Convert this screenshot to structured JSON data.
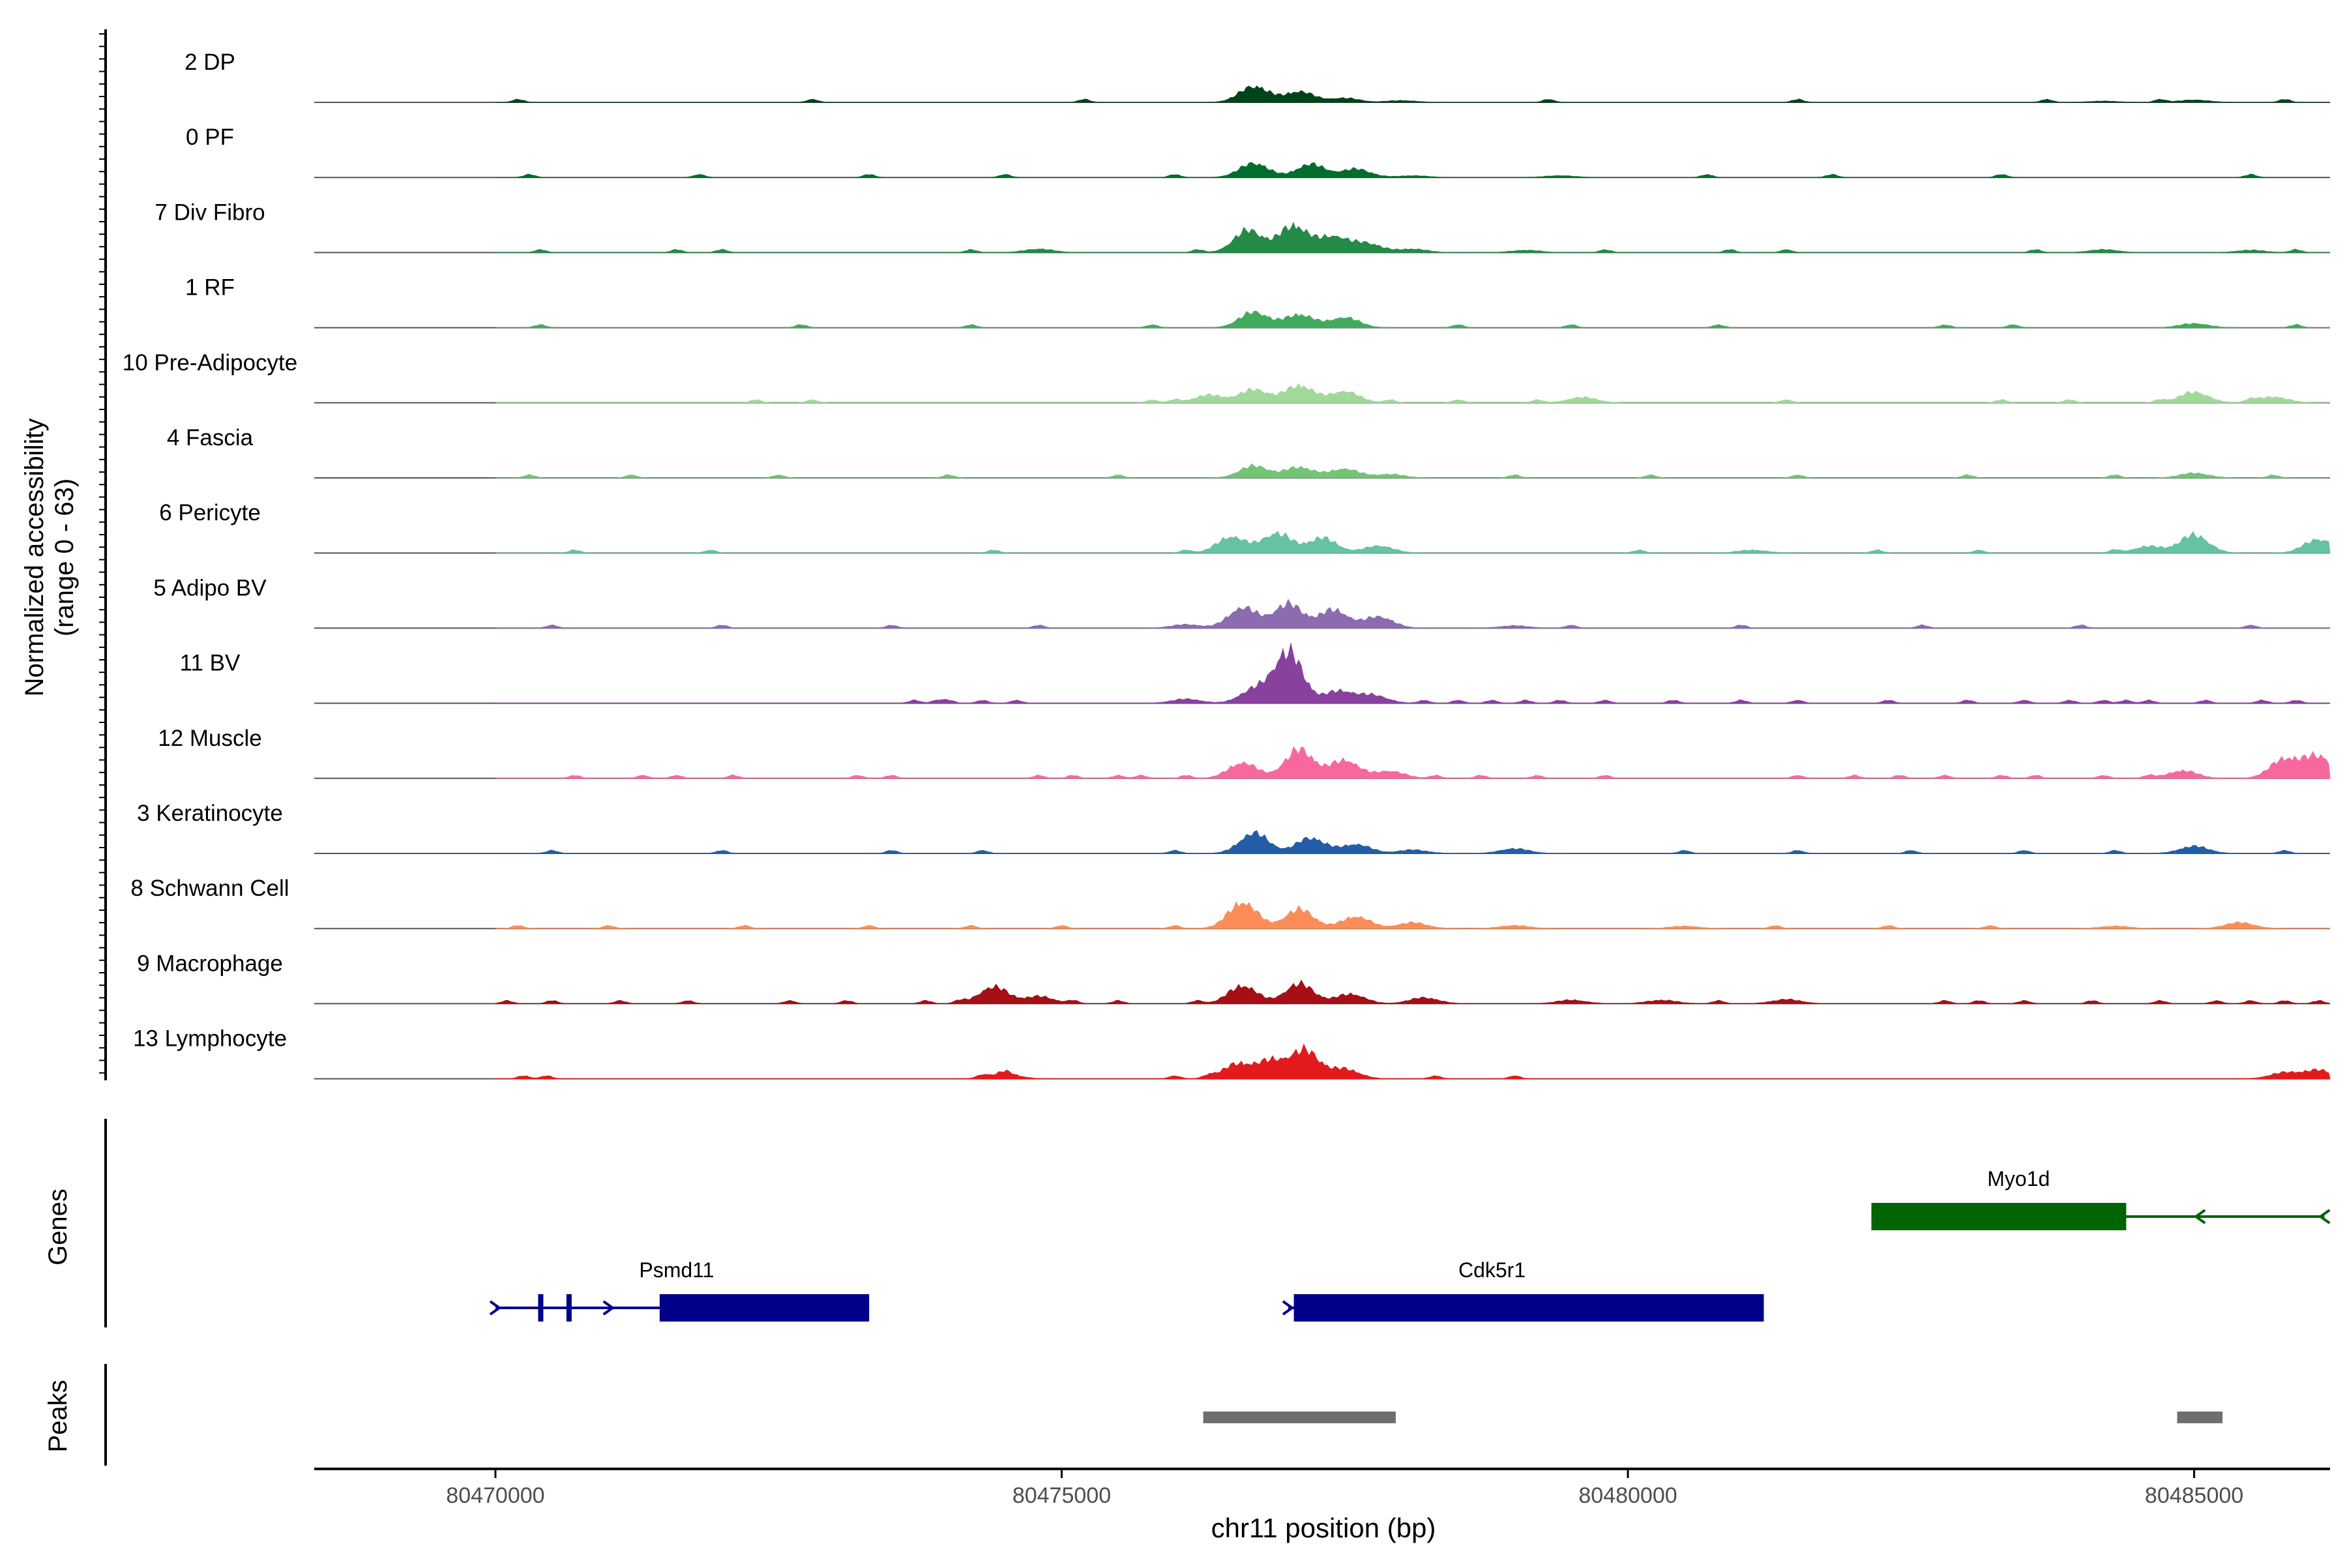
{
  "chart_data": {
    "type": "area",
    "title": "",
    "ylabel_line1": "Normalized accessibility",
    "ylabel_line2": "(range 0 - 63)",
    "xlabel": "chr11 position (bp)",
    "xlim": [
      80468400,
      80486200
    ],
    "ylim": [
      0,
      63
    ],
    "x_ticks": [
      80470000,
      80475000,
      80480000,
      80485000
    ],
    "x_tick_labels": [
      "80470000",
      "80475000",
      "80480000",
      "80485000"
    ],
    "genes_label": "Genes",
    "peaks_label": "Peaks",
    "tracks": [
      {
        "name": "2 DP",
        "color": "#00441b",
        "peaks": [
          [
            80476700,
            27
          ],
          [
            80477100,
            18
          ],
          [
            80477500,
            7
          ],
          [
            80478000,
            3
          ],
          [
            80485000,
            4
          ],
          [
            80484200,
            2
          ]
        ],
        "dots": [
          80470200,
          80472800,
          80475200,
          80479300,
          80481500,
          80483700,
          80484700,
          80485800
        ]
      },
      {
        "name": "0 PF",
        "color": "#006d2c",
        "peaks": [
          [
            80476700,
            24
          ],
          [
            80477200,
            22
          ],
          [
            80477600,
            14
          ],
          [
            80478100,
            3
          ],
          [
            80479400,
            3
          ]
        ],
        "dots": [
          80470300,
          80471800,
          80473300,
          80474500,
          80476000,
          80480700,
          80481800,
          80483300,
          80485500
        ]
      },
      {
        "name": "7 Div Fibro",
        "color": "#238b45",
        "peaks": [
          [
            80476650,
            37
          ],
          [
            80477050,
            45
          ],
          [
            80477400,
            26
          ],
          [
            80477700,
            15
          ],
          [
            80478100,
            6
          ],
          [
            80474800,
            6
          ],
          [
            80479100,
            4
          ],
          [
            80484200,
            5
          ],
          [
            80485500,
            4
          ]
        ],
        "dots": [
          80470400,
          80471600,
          80472000,
          80474200,
          80476200,
          80479800,
          80480900,
          80481400,
          80483600,
          80485900
        ]
      },
      {
        "name": "1 RF",
        "color": "#41ab5d",
        "peaks": [
          [
            80476700,
            26
          ],
          [
            80477100,
            22
          ],
          [
            80477500,
            17
          ],
          [
            80485000,
            7
          ]
        ],
        "dots": [
          80470400,
          80472700,
          80474200,
          80475800,
          80478500,
          80479500,
          80480800,
          80482800,
          80483400,
          80485900
        ]
      },
      {
        "name": "10 Pre-Adipocyte",
        "color": "#a1d99b",
        "peaks": [
          [
            80476700,
            22
          ],
          [
            80477100,
            29
          ],
          [
            80477500,
            19
          ],
          [
            80476300,
            13
          ],
          [
            80485000,
            18
          ],
          [
            80479600,
            9
          ],
          [
            80485700,
            10
          ]
        ],
        "dots": [
          80472300,
          80472800,
          80475800,
          80476000,
          80477900,
          80478500,
          80479200,
          80481400,
          80483300,
          80483900,
          80484700,
          80485500
        ]
      },
      {
        "name": "4 Fascia",
        "color": "#74c476",
        "peaks": [
          [
            80476700,
            20
          ],
          [
            80477100,
            18
          ],
          [
            80477500,
            15
          ],
          [
            80477900,
            6
          ],
          [
            80485000,
            8
          ]
        ],
        "dots": [
          80470300,
          80471200,
          80472500,
          80474000,
          80475500,
          80479000,
          80480200,
          80481500,
          80483000,
          80484300,
          80485700
        ]
      },
      {
        "name": "6 Pericyte",
        "color": "#66c2a4",
        "peaks": [
          [
            80476500,
            27
          ],
          [
            80476900,
            33
          ],
          [
            80477300,
            25
          ],
          [
            80477800,
            12
          ],
          [
            80481100,
            5
          ],
          [
            80484600,
            11
          ],
          [
            80485000,
            30
          ],
          [
            80486100,
            23
          ]
        ],
        "dots": [
          80470700,
          80471900,
          80474400,
          80476100,
          80480100,
          80482200,
          80483100,
          80484300
        ]
      },
      {
        "name": "5 Adipo BV",
        "color": "#8c6bb1",
        "peaks": [
          [
            80476600,
            34
          ],
          [
            80477000,
            40
          ],
          [
            80477400,
            30
          ],
          [
            80477800,
            19
          ],
          [
            80476100,
            6
          ],
          [
            80479000,
            4
          ]
        ],
        "dots": [
          80470500,
          80472000,
          80473500,
          80474800,
          80479500,
          80481000,
          80482600,
          80484000,
          80485500
        ]
      },
      {
        "name": "11 BV",
        "color": "#88419d",
        "peaks": [
          [
            80476700,
            22
          ],
          [
            80477000,
            85
          ],
          [
            80477450,
            20
          ],
          [
            80477750,
            13
          ],
          [
            80476100,
            7
          ]
        ],
        "dots": [
          80473700,
          80473900,
          80474000,
          80474300,
          80474600,
          80478200,
          80478500,
          80478800,
          80479100,
          80479400,
          80479800,
          80480400,
          80481000,
          80481500,
          80482300,
          80483000,
          80483500,
          80483900,
          80484200,
          80484400,
          80484600,
          80485100,
          80485600,
          80485900
        ]
      },
      {
        "name": "12 Muscle",
        "color": "#f768a1",
        "peaks": [
          [
            80476600,
            26
          ],
          [
            80477100,
            48
          ],
          [
            80477500,
            30
          ],
          [
            80477900,
            12
          ],
          [
            80484900,
            13
          ],
          [
            80485800,
            32
          ],
          [
            80486100,
            36
          ]
        ],
        "dots": [
          80470700,
          80471300,
          80471600,
          80472100,
          80473200,
          80473500,
          80474800,
          80475100,
          80475500,
          80475700,
          80476100,
          80478300,
          80478700,
          80479200,
          80479800,
          80481500,
          80482000,
          80482400,
          80482800,
          80483300,
          80483600,
          80484200,
          80484600
        ]
      },
      {
        "name": "3 Keratinocyte",
        "color": "#225ea8",
        "peaks": [
          [
            80476700,
            34
          ],
          [
            80477200,
            26
          ],
          [
            80477600,
            15
          ],
          [
            80478100,
            6
          ],
          [
            80479000,
            8
          ],
          [
            80485000,
            12
          ]
        ],
        "dots": [
          80470500,
          80472000,
          80473500,
          80474300,
          80476000,
          80480500,
          80481500,
          80482500,
          80483500,
          80484300,
          80485800
        ]
      },
      {
        "name": "8 Schwann Cell",
        "color": "#fc8d59",
        "peaks": [
          [
            80476600,
            44
          ],
          [
            80477100,
            32
          ],
          [
            80477600,
            20
          ],
          [
            80478100,
            10
          ],
          [
            80479000,
            5
          ],
          [
            80480500,
            4
          ],
          [
            80484300,
            4
          ],
          [
            80485400,
            10
          ]
        ],
        "dots": [
          80470200,
          80471000,
          80472200,
          80473300,
          80474200,
          80475000,
          80476000,
          80481300,
          80482300,
          80483200
        ]
      },
      {
        "name": "9 Macrophage",
        "color": "#a50f15",
        "peaks": [
          [
            80474400,
            28
          ],
          [
            80474800,
            12
          ],
          [
            80476600,
            30
          ],
          [
            80477100,
            33
          ],
          [
            80477550,
            16
          ],
          [
            80478200,
            10
          ],
          [
            80479500,
            6
          ],
          [
            80480300,
            6
          ],
          [
            80481400,
            7
          ]
        ],
        "dots": [
          80470100,
          80470500,
          80471100,
          80471700,
          80472600,
          80473100,
          80473800,
          80474100,
          80475100,
          80475500,
          80476200,
          80480800,
          80482800,
          80483100,
          80483500,
          80484100,
          80484700,
          80485200,
          80485500,
          80485800,
          80486100
        ]
      },
      {
        "name": "13 Lymphocyte",
        "color": "#e31a1c",
        "peaks": [
          [
            80476550,
            24
          ],
          [
            80476850,
            28
          ],
          [
            80477150,
            46
          ],
          [
            80477500,
            16
          ],
          [
            80474500,
            8
          ],
          [
            80485800,
            10
          ],
          [
            80486100,
            14
          ]
        ],
        "dots": [
          80470250,
          80470450,
          80474300,
          80474500,
          80476000,
          80476300,
          80478300,
          80479000
        ]
      }
    ],
    "genes": [
      {
        "name": "Psmd11",
        "strand": "+",
        "start": 80470000,
        "end": 80473300,
        "cds_start": 80471450,
        "label_x": 80471600,
        "exons": [
          80470400,
          80470650
        ],
        "arrows": [
          80470000,
          80471000
        ],
        "color": "#00008b",
        "row": 2
      },
      {
        "name": "Cdk5r1",
        "strand": "+",
        "start": 80477000,
        "end": 80481200,
        "cds_start": 80477050,
        "label_x": 80478800,
        "exons": [],
        "arrows": [
          80477000
        ],
        "color": "#00008b",
        "row": 2
      },
      {
        "name": "Myo1d",
        "strand": "-",
        "start": 80482150,
        "end": 80486150,
        "cds_start": 80482150,
        "cds_end": 80484400,
        "label_x": 80483450,
        "exons": [],
        "arrows": [
          80486150,
          80485050
        ],
        "color": "#006400",
        "row": 1
      }
    ],
    "peaks": [
      [
        80476250,
        80477950
      ],
      [
        80484850,
        80485250
      ]
    ]
  }
}
